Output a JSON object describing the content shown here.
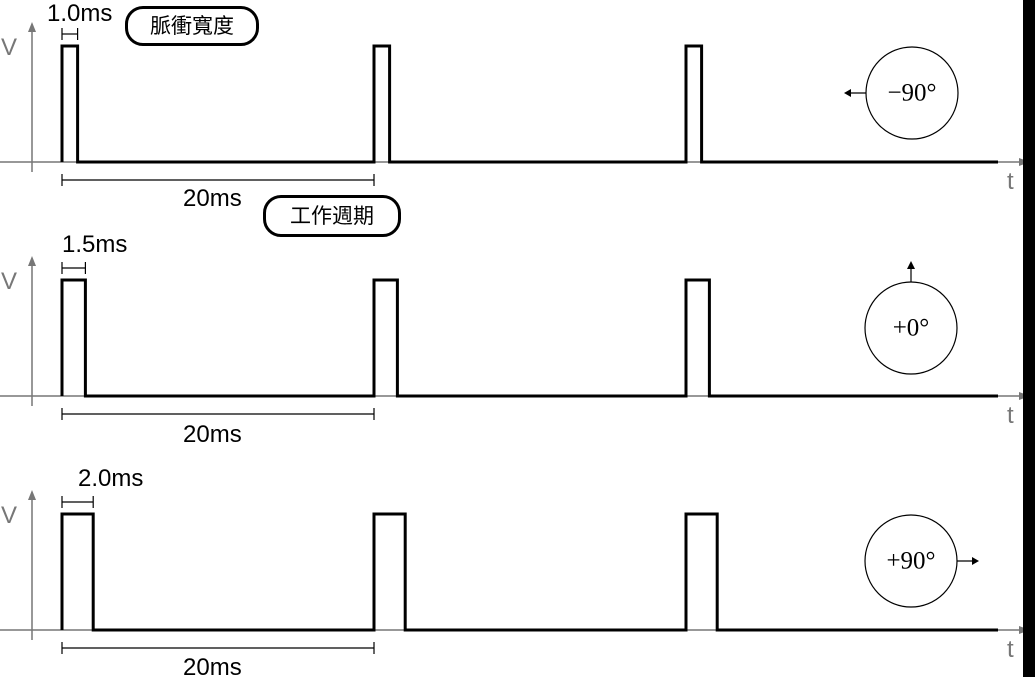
{
  "axes": {
    "v_label": "V",
    "t_label": "t"
  },
  "labels": {
    "pulse_width_tag": "脈衝寬度",
    "period_tag": "工作週期"
  },
  "colors": {
    "axis": "#777777",
    "signal": "#000000",
    "background": "#ffffff"
  },
  "panels": [
    {
      "pulse_ms": 1.0,
      "pulse_label": "1.0ms",
      "period_ms": 20,
      "period_label": "20ms",
      "angle_label": "−90°",
      "arrow": "left-arrow"
    },
    {
      "pulse_ms": 1.5,
      "pulse_label": "1.5ms",
      "period_ms": 20,
      "period_label": "20ms",
      "angle_label": "+0°",
      "arrow": "up-arrow"
    },
    {
      "pulse_ms": 2.0,
      "pulse_label": "2.0ms",
      "period_ms": 20,
      "period_label": "20ms",
      "angle_label": "+90°",
      "arrow": "right-arrow"
    }
  ]
}
